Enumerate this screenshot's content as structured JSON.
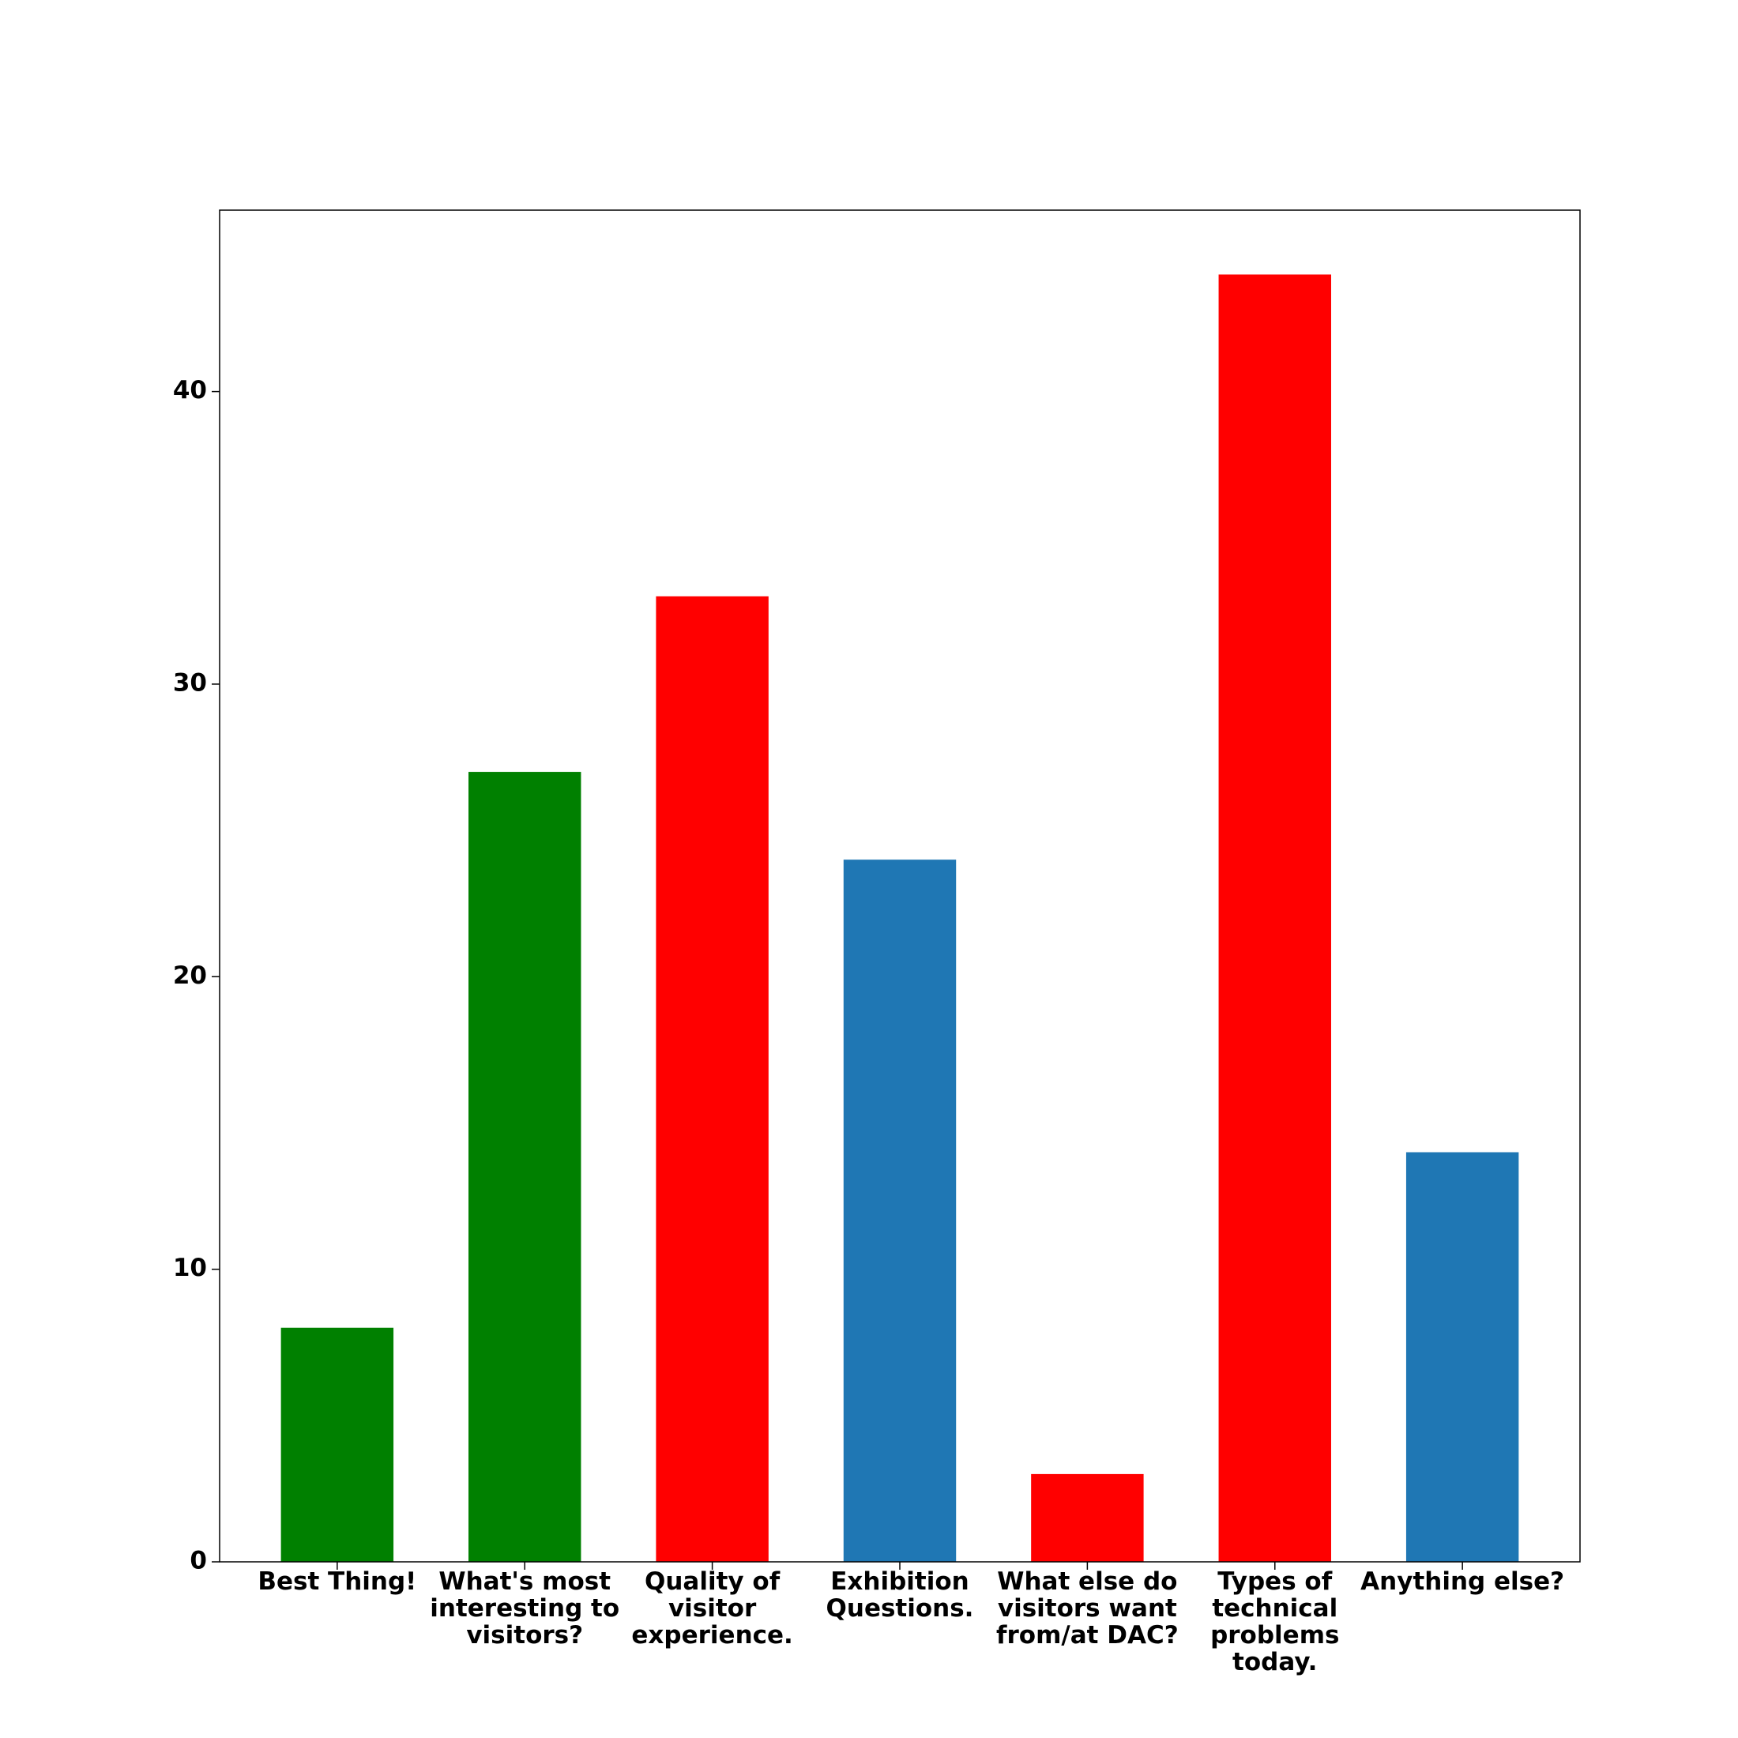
{
  "chart_data": {
    "type": "bar",
    "categories": [
      "Best Thing!",
      "What's most\ninteresting to\nvisitors?",
      "Quality of\nvisitor\nexperience.",
      "Exhibition\nQuestions.",
      "What else do\nvisitors want\nfrom/at DAC?",
      "Types of\ntechnical\nproblems\ntoday.",
      "Anything else?"
    ],
    "values": [
      8,
      27,
      33,
      24,
      3,
      44,
      14
    ],
    "colors": [
      "#008000",
      "#008000",
      "#ff0000",
      "#1f77b4",
      "#ff0000",
      "#ff0000",
      "#1f77b4"
    ],
    "ylim": [
      0,
      46.2
    ],
    "yticks": [
      0,
      10,
      20,
      30,
      40
    ],
    "grid": false
  }
}
